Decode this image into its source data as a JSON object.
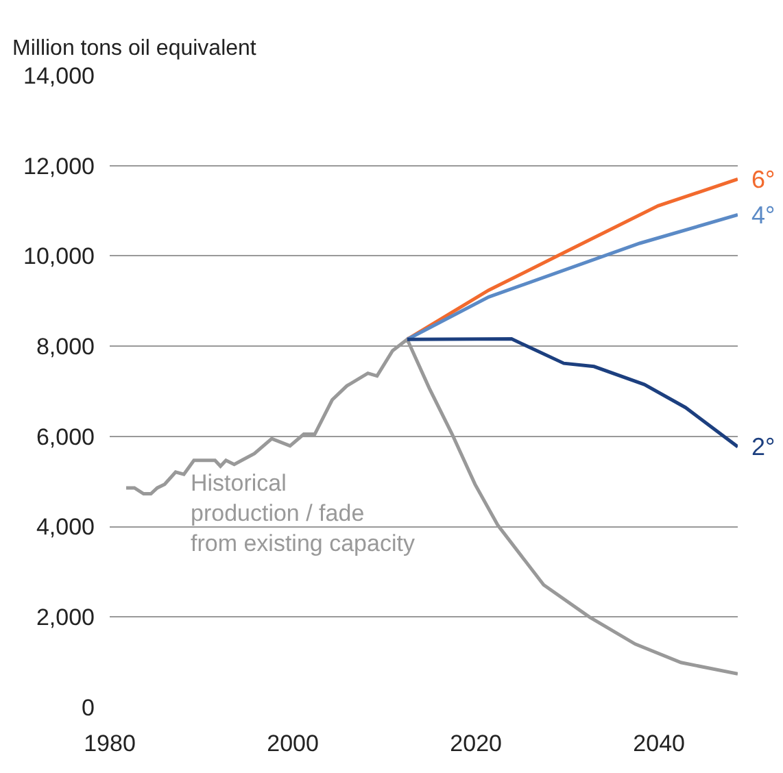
{
  "chart_data": {
    "type": "line",
    "ylabel": "Million tons oil equivalent",
    "xlim": [
      1980,
      2048.6
    ],
    "xticks": [
      1980,
      2000,
      2020,
      2040
    ],
    "ylim": [
      0,
      14000
    ],
    "yticks": [
      {
        "value": 0,
        "label": "0"
      },
      {
        "value": 2000,
        "label": "2,000"
      },
      {
        "value": 4000,
        "label": "4,000"
      },
      {
        "value": 6000,
        "label": "6,000"
      },
      {
        "value": 8000,
        "label": "8,000"
      },
      {
        "value": 10000,
        "label": "10,000"
      },
      {
        "value": 12000,
        "label": "12,000"
      },
      {
        "value": 14000,
        "label": "14,000"
      }
    ],
    "grid": "y",
    "legend": false,
    "marker": "none",
    "line_style": "solid",
    "series": [
      {
        "name": "Historical\nproduction / fade\nfrom existing capacity",
        "color": "#999999",
        "x": [
          1981.8,
          1982.7,
          1983.7,
          1984.5,
          1985.2,
          1986,
          1987.2,
          1988.1,
          1989.2,
          1991.5,
          1992.1,
          1992.7,
          1993.6,
          1994.7,
          1995.8,
          1997.7,
          1999.7,
          2001.2,
          2002.4,
          2004.3,
          2005.9,
          2008.2,
          2009.2,
          2010.9,
          2012.5,
          2014.9,
          2017.4,
          2019.9,
          2022.4,
          2027.4,
          2032.4,
          2037.4,
          2042.4,
          2048.6
        ],
        "values": [
          4860,
          4860,
          4730,
          4730,
          4860,
          4940,
          5210,
          5160,
          5470,
          5470,
          5340,
          5470,
          5380,
          5500,
          5620,
          5950,
          5790,
          6050,
          6050,
          6810,
          7120,
          7400,
          7340,
          7900,
          8150,
          7070,
          6050,
          4940,
          4030,
          2710,
          2000,
          1400,
          990,
          740
        ]
      },
      {
        "name": "6°",
        "color": "#f26a2e",
        "x": [
          2012.5,
          2021.4,
          2029.9,
          2039.9,
          2048.6
        ],
        "values": [
          8150,
          9240,
          10100,
          11110,
          11700
        ]
      },
      {
        "name": "4°",
        "color": "#5b8ac6",
        "x": [
          2012.5,
          2021.4,
          2037.9,
          2048.6
        ],
        "values": [
          8150,
          9090,
          10280,
          10910
        ]
      },
      {
        "name": "2°",
        "color": "#1c3f7f",
        "x": [
          2012.5,
          2023.9,
          2029.6,
          2032.9,
          2038.4,
          2042.9,
          2048.6
        ],
        "values": [
          8150,
          8160,
          7620,
          7550,
          7150,
          6640,
          5770
        ]
      }
    ]
  }
}
